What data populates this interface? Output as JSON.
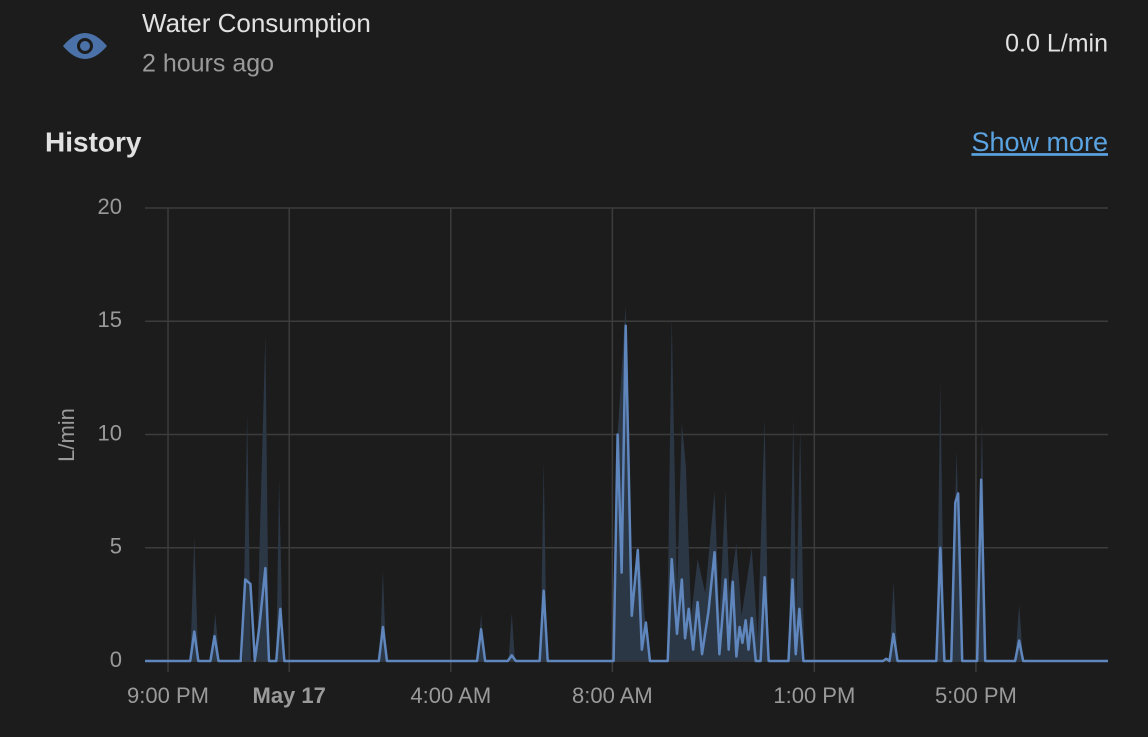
{
  "header": {
    "name": "Water Consumption",
    "last_changed": "2 hours ago",
    "state": "0.0 L/min"
  },
  "history": {
    "title": "History",
    "link": "Show more"
  },
  "chart_data": {
    "type": "line",
    "y_label": "L/min",
    "xlim": [
      -3.57,
      20.27
    ],
    "ylim": [
      0,
      20
    ],
    "yticks": [
      0,
      5,
      10,
      15,
      20
    ],
    "xticks": [
      {
        "value": -3,
        "label": "9:00 PM"
      },
      {
        "value": 0,
        "label": "May 17"
      },
      {
        "value": 4,
        "label": "4:00 AM"
      },
      {
        "value": 8,
        "label": "8:00 AM"
      },
      {
        "value": 13,
        "label": "1:00 PM"
      },
      {
        "value": 17,
        "label": "5:00 PM"
      }
    ],
    "grid": true,
    "series": [
      {
        "type": "area",
        "color": "#2c3745",
        "x": [
          -3.57,
          -2.45,
          -2.35,
          -2.25,
          -1.93,
          -1.83,
          -1.73,
          -1.15,
          -1.04,
          -0.95,
          -0.8,
          -0.74,
          -0.59,
          -0.5,
          -0.32,
          -0.25,
          -0.15,
          2.24,
          2.32,
          2.4,
          4.67,
          4.75,
          4.83,
          5.43,
          5.51,
          5.59,
          6.22,
          6.3,
          6.38,
          8.03,
          8.13,
          8.33,
          8.48,
          8.65,
          8.8,
          8.93,
          9.35,
          9.47,
          9.6,
          9.72,
          9.82,
          9.95,
          10.11,
          10.3,
          10.53,
          10.65,
          10.8,
          10.9,
          11.07,
          11.2,
          11.45,
          11.6,
          11.77,
          11.87,
          12.36,
          12.48,
          12.55,
          12.65,
          12.75,
          14.86,
          14.96,
          15.06,
          16.02,
          16.12,
          16.22,
          16.39,
          16.52,
          16.66,
          17.03,
          17.15,
          17.25,
          17.97,
          18.07,
          18.17,
          20.27
        ],
        "values": [
          0,
          0,
          5.5,
          0,
          0,
          2.1,
          0,
          0,
          10.9,
          0,
          0,
          4.7,
          14.4,
          0,
          0,
          8.0,
          0,
          0,
          4.0,
          0,
          0,
          2.1,
          0,
          0,
          2.1,
          0,
          0,
          8.8,
          0,
          0,
          10.0,
          15.7,
          2.5,
          4.9,
          2.0,
          0,
          0,
          15.2,
          3.0,
          10.5,
          8.6,
          2.0,
          4.5,
          3.0,
          7.5,
          2.0,
          7.5,
          3.0,
          5.2,
          2.0,
          5.0,
          1.0,
          10.7,
          0,
          0,
          10.7,
          2.0,
          10.2,
          0,
          0,
          3.5,
          0,
          0,
          12.3,
          0,
          0,
          9.3,
          0,
          0,
          10.6,
          0,
          0,
          2.5,
          0,
          0
        ]
      },
      {
        "type": "line",
        "color": "#5f86bd",
        "x": [
          -3.57,
          -2.45,
          -2.35,
          -2.25,
          -1.95,
          -1.85,
          -1.75,
          -1.2,
          -1.09,
          -0.96,
          -0.85,
          -0.74,
          -0.59,
          -0.5,
          -0.32,
          -0.22,
          -0.12,
          2.22,
          2.32,
          2.42,
          4.65,
          4.75,
          4.85,
          5.41,
          5.51,
          5.61,
          6.2,
          6.3,
          6.4,
          8.03,
          8.13,
          8.23,
          8.33,
          8.48,
          8.63,
          8.73,
          8.83,
          8.93,
          9.37,
          9.47,
          9.6,
          9.72,
          9.8,
          9.89,
          10.0,
          10.11,
          10.22,
          10.38,
          10.53,
          10.65,
          10.8,
          10.88,
          10.98,
          11.07,
          11.15,
          11.22,
          11.3,
          11.37,
          11.45,
          11.55,
          11.67,
          11.77,
          11.87,
          12.36,
          12.46,
          12.54,
          12.63,
          12.73,
          14.7,
          14.78,
          14.86,
          14.96,
          15.06,
          16.02,
          16.12,
          16.22,
          16.39,
          16.49,
          16.56,
          16.66,
          17.03,
          17.13,
          17.23,
          17.97,
          18.07,
          18.17,
          20.27
        ],
        "values": [
          0,
          0,
          1.3,
          0,
          0,
          1.1,
          0,
          0,
          3.6,
          3.4,
          0,
          1.5,
          4.1,
          0,
          0,
          2.3,
          0,
          0,
          1.5,
          0,
          0,
          1.4,
          0,
          0,
          0.25,
          0,
          0,
          3.1,
          0,
          0,
          10.0,
          3.9,
          14.8,
          2.0,
          4.9,
          0.5,
          1.7,
          0,
          0,
          4.5,
          1.2,
          3.6,
          1.0,
          2.3,
          0.5,
          2.6,
          0.3,
          2.2,
          4.8,
          0.3,
          3.6,
          0.5,
          3.5,
          0.2,
          1.5,
          0.8,
          1.8,
          0.5,
          1.9,
          0,
          0,
          3.7,
          0,
          0,
          3.6,
          0.3,
          2.3,
          0,
          0,
          0.1,
          0,
          1.2,
          0,
          0,
          5.0,
          0,
          0,
          7.0,
          7.4,
          0,
          0,
          8.0,
          0,
          0,
          0.9,
          0,
          0
        ]
      }
    ]
  }
}
